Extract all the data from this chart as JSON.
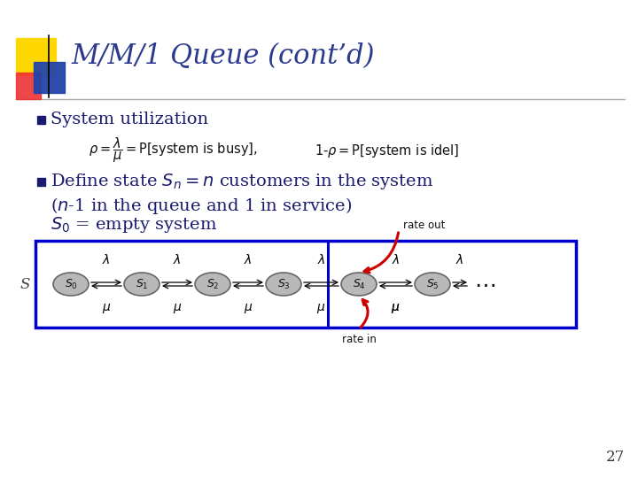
{
  "title": "M/M/1 Queue (cont’d)",
  "bg_color": "#ffffff",
  "title_color": "#2B3A8F",
  "bullet_color": "#1a1a6e",
  "slide_num": "27",
  "bullet1": "System utilization",
  "box_color": "#0000cc",
  "state_fill": "#b8b8b8",
  "state_edge": "#666666",
  "rate_color": "#cc0000",
  "yellow_rect": "#FFD700",
  "red_rect": "#EE3333",
  "blue_rect": "#2244AA",
  "S_label_color": "#444444",
  "divider_color": "#aaaaaa",
  "text_color": "#111111"
}
